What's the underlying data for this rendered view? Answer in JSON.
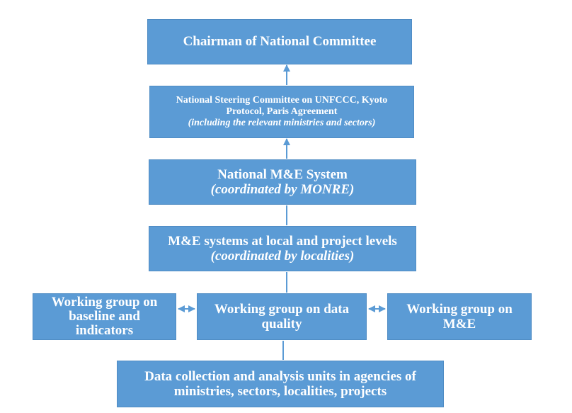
{
  "boxes": {
    "chairman": {
      "line1": "Chairman of National Committee"
    },
    "steering": {
      "line1": "National Steering Committee on UNFCCC, Kyoto",
      "line2": "Protocol, Paris Agreement",
      "line3": "(including the relevant ministries and sectors)"
    },
    "national_me": {
      "line1": "National M&E System",
      "line2": "(coordinated by MONRE)"
    },
    "local_me": {
      "line1": "M&E systems at local and project levels",
      "line2": "(coordinated by localities)"
    },
    "wg_baseline": {
      "line1": "Working group on",
      "line2": "baseline and",
      "line3": "indicators"
    },
    "wg_data_quality": {
      "line1": "Working group on data",
      "line2": "quality"
    },
    "wg_me": {
      "line1": "Working group on",
      "line2": "M&E"
    },
    "data_units": {
      "line1": "Data collection and analysis units in agencies of",
      "line2": "ministries, sectors, localities, projects"
    }
  },
  "colors": {
    "box_fill": "#5b9bd5",
    "text": "#ffffff",
    "connector": "#5b9bd5"
  }
}
